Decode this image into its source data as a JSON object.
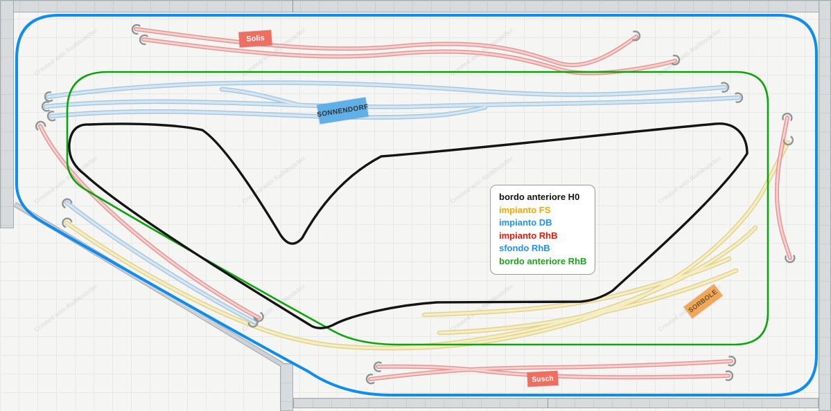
{
  "watermark": {
    "text": "Created with RailModeller"
  },
  "legend": {
    "items": [
      {
        "label": "bordo anteriore H0",
        "color": "#111111"
      },
      {
        "label": "impianto FS",
        "color": "#f7a600"
      },
      {
        "label": "impianto DB",
        "color": "#1e90ff"
      },
      {
        "label": "impianto RhB",
        "color": "#ee1607"
      },
      {
        "label": "sfondo RhB",
        "color": "#1e90ff"
      },
      {
        "label": "bordo anteriore RhB",
        "color": "#17a617"
      }
    ]
  },
  "stations": [
    {
      "name": "Solis",
      "bg": "#ee6e62",
      "color": "#ffffff"
    },
    {
      "name": "SONNENDORF",
      "bg": "#5fb0e8",
      "color": "#333333"
    },
    {
      "name": "SORBOLE",
      "bg": "#f0a75a",
      "color": "#6b5427"
    },
    {
      "name": "Susch",
      "bg": "#ee6e62",
      "color": "#ffffff"
    }
  ],
  "plan_colors": {
    "bordo_anteriore_h0": "#141414",
    "impianto_fs_track": "#e2d38a",
    "impianto_db_track": "#a5c7e0",
    "impianto_rhb_track": "#e39693",
    "sfondo_rhb_border": "#0d8df2",
    "bordo_anteriore_rhb_border": "#0aa50a"
  }
}
